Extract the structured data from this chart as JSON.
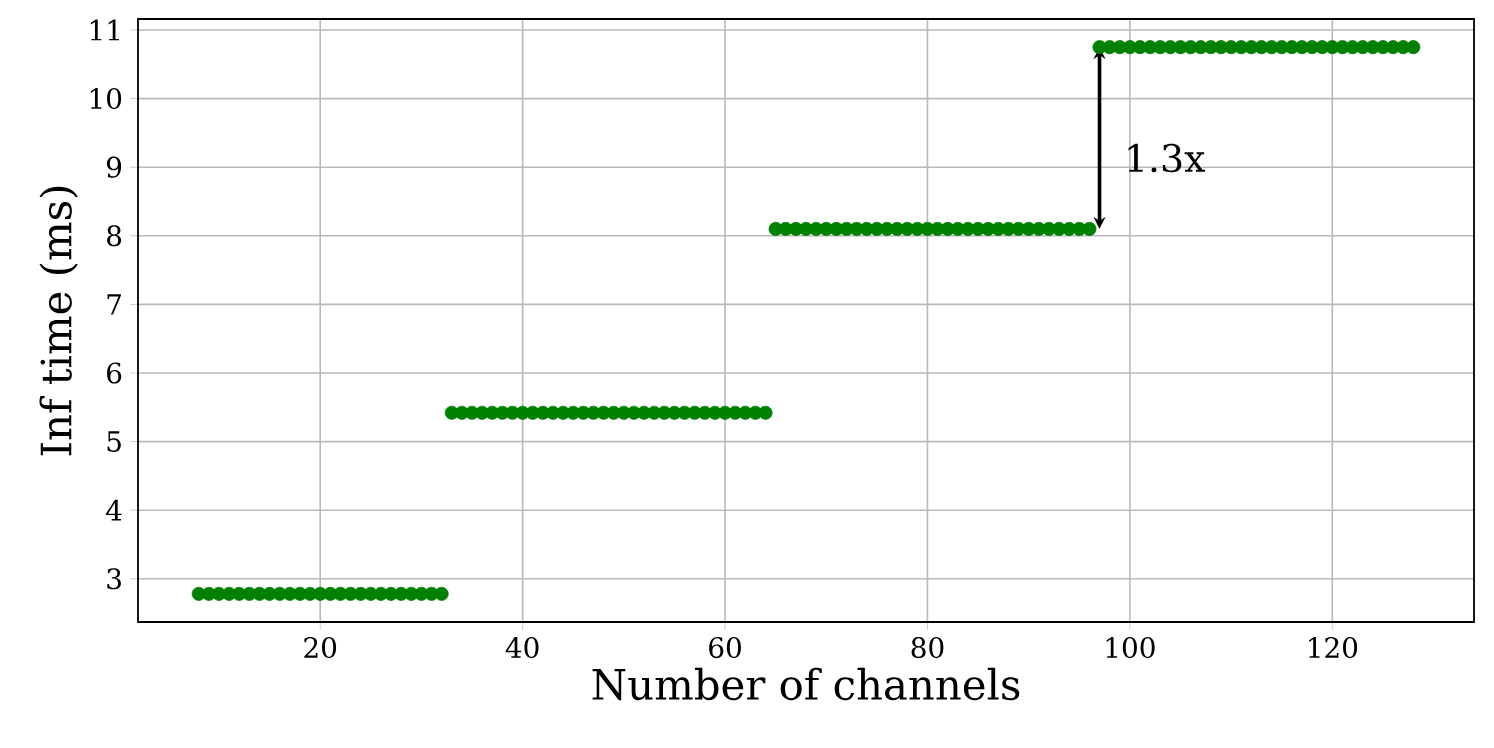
{
  "chart_data": {
    "type": "scatter",
    "xlabel": "Number of channels",
    "ylabel": "Inf time (ms)",
    "x": [
      8,
      9,
      10,
      11,
      12,
      13,
      14,
      15,
      16,
      17,
      18,
      19,
      20,
      21,
      22,
      23,
      24,
      25,
      26,
      27,
      28,
      29,
      30,
      31,
      32,
      33,
      34,
      35,
      36,
      37,
      38,
      39,
      40,
      41,
      42,
      43,
      44,
      45,
      46,
      47,
      48,
      49,
      50,
      51,
      52,
      53,
      54,
      55,
      56,
      57,
      58,
      59,
      60,
      61,
      62,
      63,
      64,
      65,
      66,
      67,
      68,
      69,
      70,
      71,
      72,
      73,
      74,
      75,
      76,
      77,
      78,
      79,
      80,
      81,
      82,
      83,
      84,
      85,
      86,
      87,
      88,
      89,
      90,
      91,
      92,
      93,
      94,
      95,
      96,
      97,
      98,
      99,
      100,
      101,
      102,
      103,
      104,
      105,
      106,
      107,
      108,
      109,
      110,
      111,
      112,
      113,
      114,
      115,
      116,
      117,
      118,
      119,
      120,
      121,
      122,
      123,
      124,
      125,
      126,
      127,
      128
    ],
    "values": [
      2.78,
      2.78,
      2.78,
      2.78,
      2.78,
      2.78,
      2.78,
      2.78,
      2.78,
      2.78,
      2.78,
      2.78,
      2.78,
      2.78,
      2.78,
      2.78,
      2.78,
      2.78,
      2.78,
      2.78,
      2.78,
      2.78,
      2.78,
      2.78,
      2.78,
      5.42,
      5.42,
      5.42,
      5.42,
      5.42,
      5.42,
      5.42,
      5.42,
      5.42,
      5.42,
      5.42,
      5.42,
      5.42,
      5.42,
      5.42,
      5.42,
      5.42,
      5.42,
      5.42,
      5.42,
      5.42,
      5.42,
      5.42,
      5.42,
      5.42,
      5.42,
      5.42,
      5.42,
      5.42,
      5.42,
      5.42,
      5.42,
      8.1,
      8.1,
      8.1,
      8.1,
      8.1,
      8.1,
      8.1,
      8.1,
      8.1,
      8.1,
      8.1,
      8.1,
      8.1,
      8.1,
      8.1,
      8.1,
      8.1,
      8.1,
      8.1,
      8.1,
      8.1,
      8.1,
      8.1,
      8.1,
      8.1,
      8.1,
      8.1,
      8.1,
      8.1,
      8.1,
      8.1,
      8.1,
      10.75,
      10.75,
      10.75,
      10.75,
      10.75,
      10.75,
      10.75,
      10.75,
      10.75,
      10.75,
      10.75,
      10.75,
      10.75,
      10.75,
      10.75,
      10.75,
      10.75,
      10.75,
      10.75,
      10.75,
      10.75,
      10.75,
      10.75,
      10.75,
      10.75,
      10.75,
      10.75,
      10.75,
      10.75,
      10.75,
      10.75,
      10.75
    ],
    "color": "#008000",
    "marker": "circle",
    "xlim": [
      2,
      134
    ],
    "xticks": [
      20,
      40,
      60,
      80,
      100,
      120
    ],
    "ylim": [
      2.37,
      11.16
    ],
    "yticks": [
      3,
      4,
      5,
      6,
      7,
      8,
      9,
      10,
      11
    ],
    "grid": true,
    "annotations": [
      "1.3x"
    ]
  }
}
